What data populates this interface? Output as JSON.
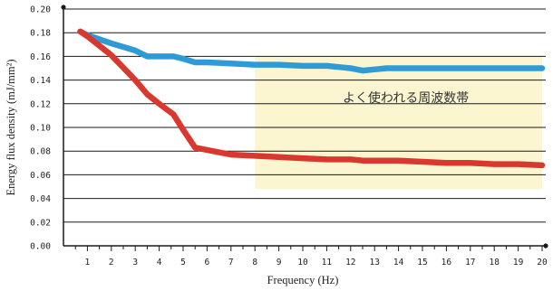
{
  "chart_data": {
    "type": "line",
    "xlabel": "Frequency (Hz)",
    "ylabel": "Energy flux density (mJ/mm²)",
    "x": [
      0.7,
      1,
      2,
      3,
      3.5,
      4,
      4.6,
      5,
      5.5,
      6,
      7,
      8,
      9,
      10,
      11,
      11.5,
      12,
      12.5,
      13,
      13.5,
      14,
      15,
      16,
      17,
      18,
      19,
      20
    ],
    "x_ticks": [
      1,
      2,
      3,
      4,
      5,
      6,
      7,
      8,
      9,
      10,
      11,
      12,
      13,
      14,
      15,
      16,
      17,
      18,
      19,
      20
    ],
    "xlim": [
      0,
      20
    ],
    "y_ticks": [
      "0.00",
      "0.02",
      "0.04",
      "0.06",
      "0.08",
      "0.10",
      "0.12",
      "0.14",
      "0.16",
      "0.18",
      "0.20"
    ],
    "ylim": [
      0,
      0.2
    ],
    "grid": "horizontal",
    "series": [
      {
        "color": "#2f9bd6",
        "values": [
          0.181,
          0.178,
          0.171,
          0.165,
          0.16,
          0.16,
          0.16,
          0.158,
          0.155,
          0.155,
          0.154,
          0.153,
          0.153,
          0.152,
          0.152,
          0.151,
          0.15,
          0.148,
          0.149,
          0.15,
          0.15,
          0.15,
          0.15,
          0.15,
          0.15,
          0.15,
          0.15
        ]
      },
      {
        "color": "#d9382e",
        "values": [
          0.181,
          0.177,
          0.161,
          0.14,
          0.128,
          0.12,
          0.111,
          0.098,
          0.083,
          0.081,
          0.077,
          0.076,
          0.075,
          0.074,
          0.073,
          0.073,
          0.073,
          0.072,
          0.072,
          0.072,
          0.072,
          0.071,
          0.07,
          0.07,
          0.069,
          0.069,
          0.068
        ]
      }
    ],
    "highlight": {
      "label": "よく使われる周波数帯",
      "x_range": [
        8,
        20
      ],
      "y_range": [
        0.048,
        0.16
      ],
      "color": "#fbf6cf"
    }
  }
}
